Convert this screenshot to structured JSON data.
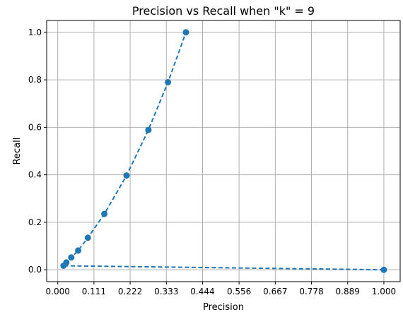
{
  "chart_data": {
    "type": "line",
    "title": "Precision vs Recall when \"k\" = 9",
    "xlabel": "Precision",
    "ylabel": "Recall",
    "xlim": [
      -0.034,
      1.05
    ],
    "ylim": [
      -0.05,
      1.05
    ],
    "grid": true,
    "x_ticks": [
      0.0,
      0.111,
      0.222,
      0.333,
      0.444,
      0.556,
      0.667,
      0.778,
      0.889,
      1.0
    ],
    "x_tick_labels": [
      "0.000",
      "0.111",
      "0.222",
      "0.333",
      "0.444",
      "0.556",
      "0.667",
      "0.778",
      "0.889",
      "1.000"
    ],
    "y_ticks": [
      0.0,
      0.2,
      0.4,
      0.6,
      0.8,
      1.0
    ],
    "y_tick_labels": [
      "0.0",
      "0.2",
      "0.4",
      "0.6",
      "0.8",
      "1.0"
    ],
    "series": [
      {
        "line_style": "dashed",
        "marker": "circle",
        "color": "#1f77b4",
        "x": [
          1.0,
          0.0175,
          0.0265,
          0.0415,
          0.0625,
          0.0925,
          0.143,
          0.211,
          0.278,
          0.338,
          0.393
        ],
        "y": [
          0.0,
          0.017,
          0.031,
          0.052,
          0.081,
          0.135,
          0.235,
          0.397,
          0.589,
          0.79,
          1.0
        ]
      }
    ]
  }
}
